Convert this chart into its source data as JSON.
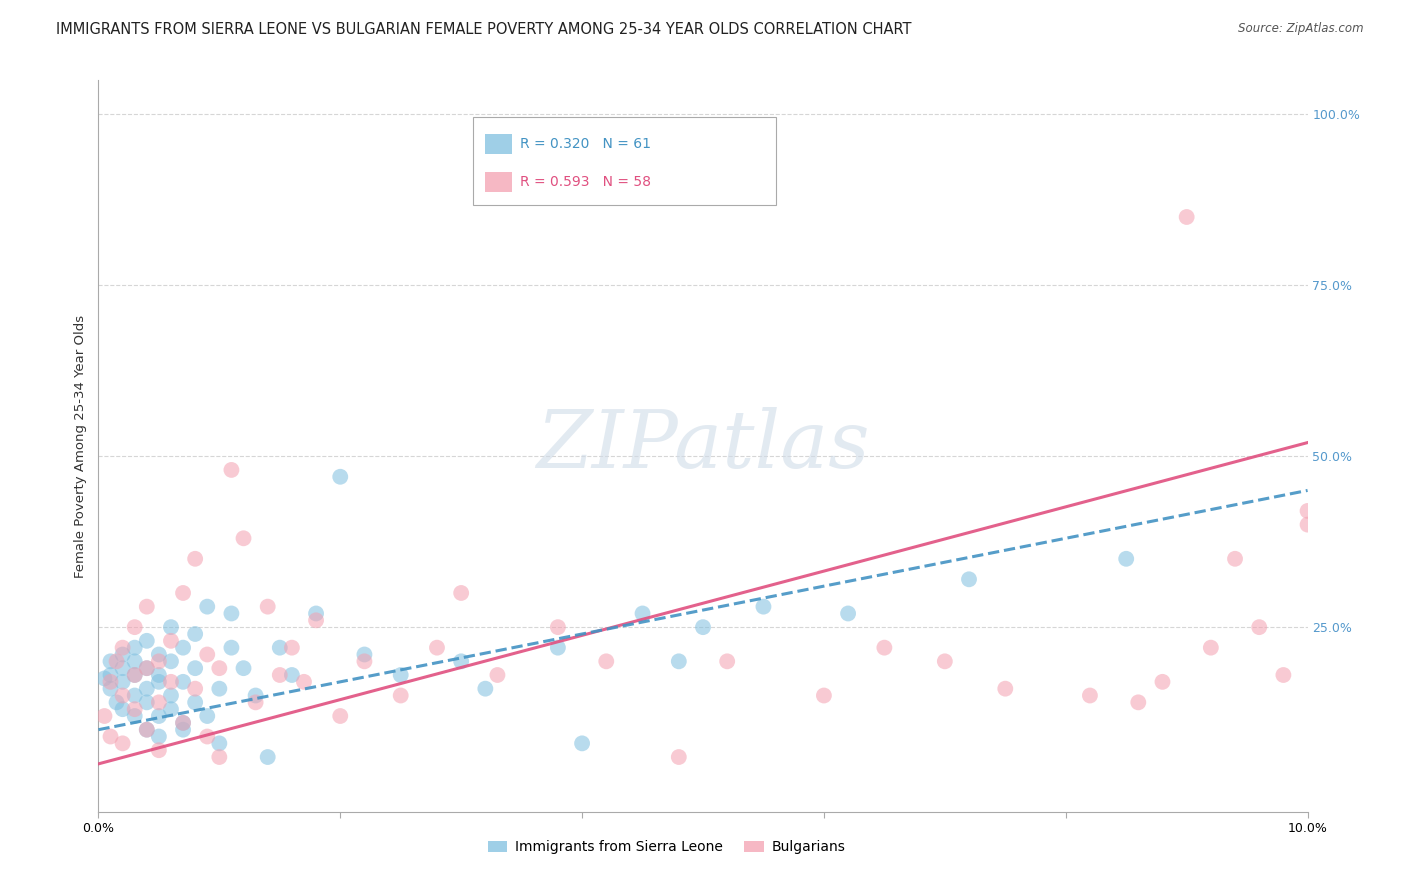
{
  "title": "IMMIGRANTS FROM SIERRA LEONE VS BULGARIAN FEMALE POVERTY AMONG 25-34 YEAR OLDS CORRELATION CHART",
  "source": "Source: ZipAtlas.com",
  "ylabel": "Female Poverty Among 25-34 Year Olds",
  "xlim": [
    0.0,
    0.1
  ],
  "ylim": [
    -0.02,
    1.05
  ],
  "xticks": [
    0.0,
    0.02,
    0.04,
    0.06,
    0.08,
    0.1
  ],
  "xticklabels": [
    "0.0%",
    "",
    "",
    "",
    "",
    "10.0%"
  ],
  "yticks_right": [
    0.0,
    0.25,
    0.5,
    0.75,
    1.0
  ],
  "yticklabels_right": [
    "",
    "25.0%",
    "50.0%",
    "75.0%",
    "100.0%"
  ],
  "series1_label": "Immigrants from Sierra Leone",
  "series1_color": "#7fbfdf",
  "series1_line_color": "#4393c3",
  "series1_R": 0.32,
  "series1_N": 61,
  "series2_label": "Bulgarians",
  "series2_color": "#f4a0b0",
  "series2_line_color": "#e05080",
  "series2_R": 0.593,
  "series2_N": 58,
  "series1_x": [
    0.0005,
    0.001,
    0.001,
    0.001,
    0.0015,
    0.002,
    0.002,
    0.002,
    0.002,
    0.003,
    0.003,
    0.003,
    0.003,
    0.003,
    0.004,
    0.004,
    0.004,
    0.004,
    0.004,
    0.005,
    0.005,
    0.005,
    0.005,
    0.005,
    0.006,
    0.006,
    0.006,
    0.006,
    0.007,
    0.007,
    0.007,
    0.007,
    0.008,
    0.008,
    0.008,
    0.009,
    0.009,
    0.01,
    0.01,
    0.011,
    0.011,
    0.012,
    0.013,
    0.014,
    0.015,
    0.016,
    0.018,
    0.02,
    0.022,
    0.025,
    0.03,
    0.032,
    0.038,
    0.04,
    0.045,
    0.048,
    0.05,
    0.055,
    0.062,
    0.072,
    0.085
  ],
  "series1_y": [
    0.175,
    0.16,
    0.2,
    0.18,
    0.14,
    0.17,
    0.21,
    0.13,
    0.19,
    0.15,
    0.22,
    0.12,
    0.18,
    0.2,
    0.1,
    0.16,
    0.23,
    0.14,
    0.19,
    0.12,
    0.17,
    0.21,
    0.09,
    0.18,
    0.15,
    0.2,
    0.13,
    0.25,
    0.11,
    0.17,
    0.22,
    0.1,
    0.19,
    0.14,
    0.24,
    0.12,
    0.28,
    0.16,
    0.08,
    0.22,
    0.27,
    0.19,
    0.15,
    0.06,
    0.22,
    0.18,
    0.27,
    0.47,
    0.21,
    0.18,
    0.2,
    0.16,
    0.22,
    0.08,
    0.27,
    0.2,
    0.25,
    0.28,
    0.27,
    0.32,
    0.35
  ],
  "series2_x": [
    0.0005,
    0.001,
    0.001,
    0.0015,
    0.002,
    0.002,
    0.002,
    0.003,
    0.003,
    0.003,
    0.004,
    0.004,
    0.004,
    0.005,
    0.005,
    0.005,
    0.006,
    0.006,
    0.007,
    0.007,
    0.008,
    0.008,
    0.009,
    0.009,
    0.01,
    0.01,
    0.011,
    0.012,
    0.013,
    0.014,
    0.015,
    0.016,
    0.017,
    0.018,
    0.02,
    0.022,
    0.025,
    0.028,
    0.03,
    0.033,
    0.038,
    0.042,
    0.048,
    0.052,
    0.06,
    0.065,
    0.07,
    0.075,
    0.082,
    0.086,
    0.088,
    0.09,
    0.092,
    0.094,
    0.096,
    0.098,
    0.1,
    0.1
  ],
  "series2_y": [
    0.12,
    0.17,
    0.09,
    0.2,
    0.15,
    0.22,
    0.08,
    0.18,
    0.13,
    0.25,
    0.1,
    0.19,
    0.28,
    0.14,
    0.2,
    0.07,
    0.17,
    0.23,
    0.11,
    0.3,
    0.16,
    0.35,
    0.09,
    0.21,
    0.19,
    0.06,
    0.48,
    0.38,
    0.14,
    0.28,
    0.18,
    0.22,
    0.17,
    0.26,
    0.12,
    0.2,
    0.15,
    0.22,
    0.3,
    0.18,
    0.25,
    0.2,
    0.06,
    0.2,
    0.15,
    0.22,
    0.2,
    0.16,
    0.15,
    0.14,
    0.17,
    0.85,
    0.22,
    0.35,
    0.25,
    0.18,
    0.42,
    0.4
  ],
  "watermark_text": "ZIPatlas",
  "watermark_color": "#d0dce8",
  "title_fontsize": 10.5,
  "axis_label_fontsize": 9.5,
  "tick_fontsize": 9,
  "legend_fontsize": 10,
  "background_color": "#ffffff",
  "grid_color": "#cccccc",
  "right_tick_color": "#5599cc"
}
